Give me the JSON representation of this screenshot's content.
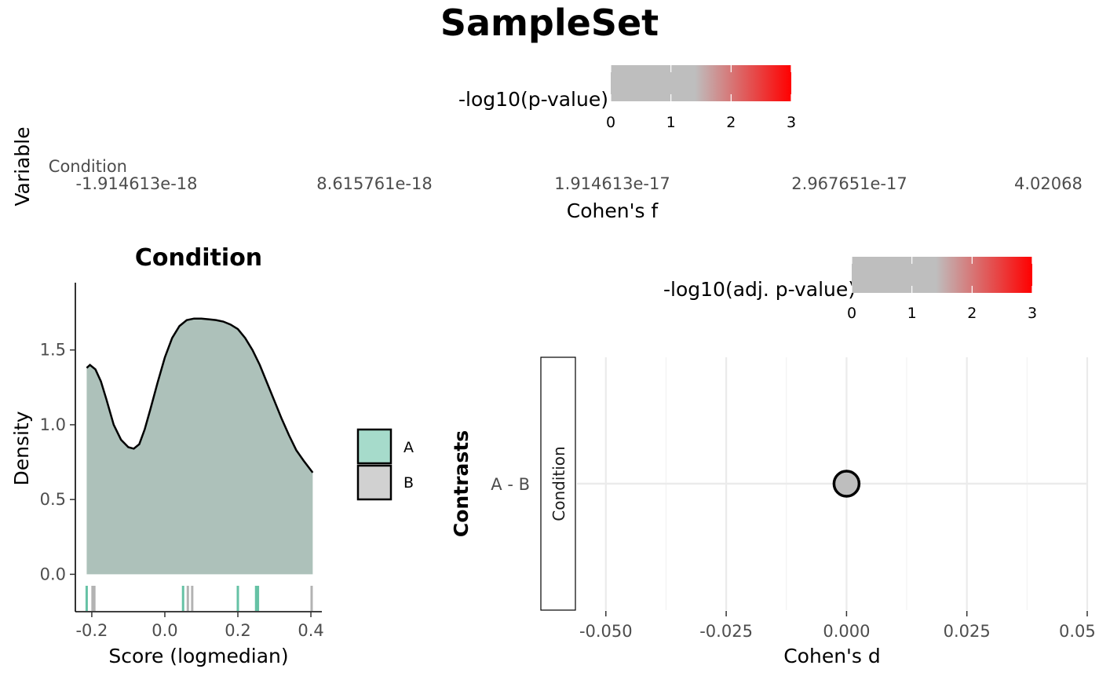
{
  "title": "SampleSet",
  "colors": {
    "group_A": "#66c2a5",
    "group_B": "#b3b3b3",
    "density_fill": "#adc1ba",
    "grid": "#ebebeb",
    "point_fill": "#bebebe",
    "scale_low": "#bebebe",
    "scale_high": "#ff0000"
  },
  "chart_data": [
    {
      "id": "cohens_f_panel",
      "type": "bar",
      "title": "",
      "xlabel": "Cohen's f",
      "ylabel": "Variable",
      "categories": [
        "Condition"
      ],
      "values": [
        0
      ],
      "x_tick_labels": [
        "-1.914613e-18",
        "8.615761e-18",
        "1.914613e-17",
        "2.967651e-17",
        "4.02068"
      ],
      "legend": {
        "title": "-log10(p-value)",
        "ticks": [
          "0",
          "1",
          "2",
          "3"
        ],
        "range": [
          0,
          3
        ],
        "colors": [
          "#bebebe",
          "#ff0000"
        ],
        "gray_until": 1.4,
        "position": "top"
      }
    },
    {
      "id": "density_panel",
      "type": "area",
      "title": "Condition",
      "xlabel": "Score (logmedian)",
      "ylabel": "Density",
      "xlim": [
        -0.245,
        0.43
      ],
      "ylim": [
        -0.25,
        1.95
      ],
      "x_ticks": [
        -0.2,
        0.0,
        0.2,
        0.4
      ],
      "x_tick_labels": [
        "-0.2",
        "0.0",
        "0.2",
        "0.4"
      ],
      "y_ticks": [
        0.0,
        0.5,
        1.0,
        1.5
      ],
      "y_tick_labels": [
        "0.0",
        "0.5",
        "1.0",
        "1.5"
      ],
      "density_x": [
        -0.214,
        -0.205,
        -0.19,
        -0.175,
        -0.16,
        -0.14,
        -0.12,
        -0.1,
        -0.085,
        -0.07,
        -0.055,
        -0.04,
        -0.02,
        0.0,
        0.02,
        0.04,
        0.06,
        0.08,
        0.1,
        0.12,
        0.14,
        0.16,
        0.18,
        0.2,
        0.22,
        0.24,
        0.26,
        0.28,
        0.3,
        0.32,
        0.34,
        0.36,
        0.38,
        0.405
      ],
      "density_y": [
        1.38,
        1.4,
        1.37,
        1.29,
        1.17,
        1.0,
        0.9,
        0.85,
        0.84,
        0.87,
        0.97,
        1.1,
        1.28,
        1.45,
        1.58,
        1.66,
        1.7,
        1.71,
        1.71,
        1.705,
        1.7,
        1.69,
        1.67,
        1.64,
        1.58,
        1.5,
        1.4,
        1.28,
        1.16,
        1.04,
        0.93,
        0.83,
        0.76,
        0.68
      ],
      "rug": [
        {
          "x": -0.214,
          "group": "A"
        },
        {
          "x": -0.198,
          "group": "B"
        },
        {
          "x": -0.193,
          "group": "B"
        },
        {
          "x": 0.05,
          "group": "A"
        },
        {
          "x": 0.063,
          "group": "B"
        },
        {
          "x": 0.075,
          "group": "B"
        },
        {
          "x": 0.2,
          "group": "A"
        },
        {
          "x": 0.25,
          "group": "A"
        },
        {
          "x": 0.255,
          "group": "A"
        },
        {
          "x": 0.402,
          "group": "B"
        }
      ],
      "legend": {
        "entries": [
          "A",
          "B"
        ],
        "position": "right"
      }
    },
    {
      "id": "contrast_panel",
      "type": "scatter",
      "title": "",
      "xlabel": "Cohen's d",
      "ylabel": "Contrasts",
      "strip_label": "Condition",
      "xlim": [
        -0.056,
        0.05
      ],
      "x_ticks": [
        -0.05,
        -0.025,
        0.0,
        0.025,
        0.05
      ],
      "x_tick_labels": [
        "-0.050",
        "-0.025",
        "0.000",
        "0.025",
        "0.05"
      ],
      "categories": [
        "A - B"
      ],
      "points": [
        {
          "contrast": "A - B",
          "x": 0.0,
          "neg_log10_adj_p": 0.0
        }
      ],
      "legend": {
        "title": "-log10(adj. p-value)",
        "ticks": [
          "0",
          "1",
          "2",
          "3"
        ],
        "range": [
          0,
          3
        ],
        "colors": [
          "#bebebe",
          "#ff0000"
        ],
        "gray_until": 1.4,
        "position": "top"
      }
    }
  ]
}
